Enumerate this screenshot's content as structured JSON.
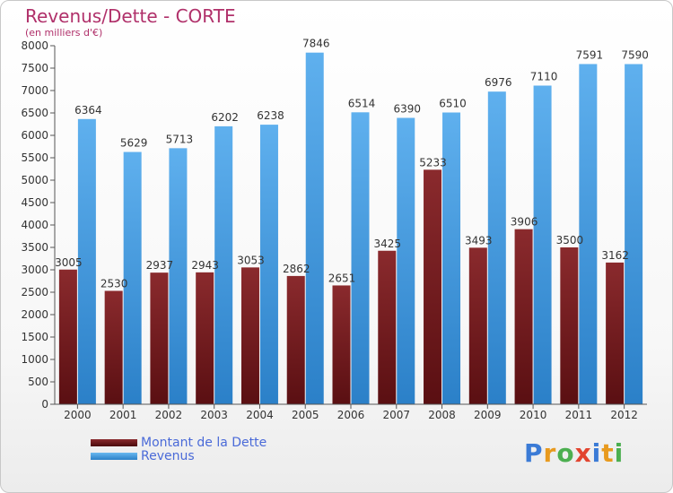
{
  "title": "Revenus/Dette - CORTE",
  "subtitle": "(en milliers d'€)",
  "logo": {
    "text": "Proxiti",
    "letters": [
      "P",
      "r",
      "o",
      "x",
      "i",
      "t",
      "i"
    ],
    "colors": [
      "#3b7bd6",
      "#e89a1e",
      "#4caf50",
      "#e2442f",
      "#3b7bd6",
      "#e89a1e",
      "#4caf50"
    ]
  },
  "colors": {
    "dette": "#7a1f22",
    "revenus": "#3d95dc",
    "axis": "#555555",
    "grid": "#cccccc",
    "text": "#333333"
  },
  "chart_data": {
    "type": "bar",
    "categories": [
      "2000",
      "2001",
      "2002",
      "2003",
      "2004",
      "2005",
      "2006",
      "2007",
      "2008",
      "2009",
      "2010",
      "2011",
      "2012"
    ],
    "series": [
      {
        "name": "Montant de la Dette",
        "values": [
          3005,
          2530,
          2937,
          2943,
          3053,
          2862,
          2651,
          3425,
          5233,
          3493,
          3906,
          3500,
          3162
        ],
        "labels": [
          "3005",
          "2530",
          "2937",
          "2943",
          "3053",
          "2862",
          "2651",
          "3425",
          "5233",
          "3493",
          "3906",
          "3500",
          "3162"
        ]
      },
      {
        "name": "Revenus",
        "values": [
          6364,
          5629,
          5713,
          6202,
          6238,
          7846,
          6514,
          6390,
          6510,
          6976,
          7110,
          7591,
          7590
        ],
        "labels": [
          "6364",
          "5629",
          "5713",
          "6202",
          "6238",
          "7846",
          "6514",
          "6390",
          "6510",
          "6976",
          "7110",
          "7591",
          "7590"
        ]
      }
    ],
    "yticks": [
      "0",
      "500",
      "1000",
      "1500",
      "2000",
      "2500",
      "3000",
      "3500",
      "4000",
      "4500",
      "5000",
      "5500",
      "6000",
      "6500",
      "7000",
      "7500",
      "8000"
    ],
    "ylim": [
      0,
      8000
    ],
    "grid": false,
    "legend_position": "bottom-left"
  }
}
